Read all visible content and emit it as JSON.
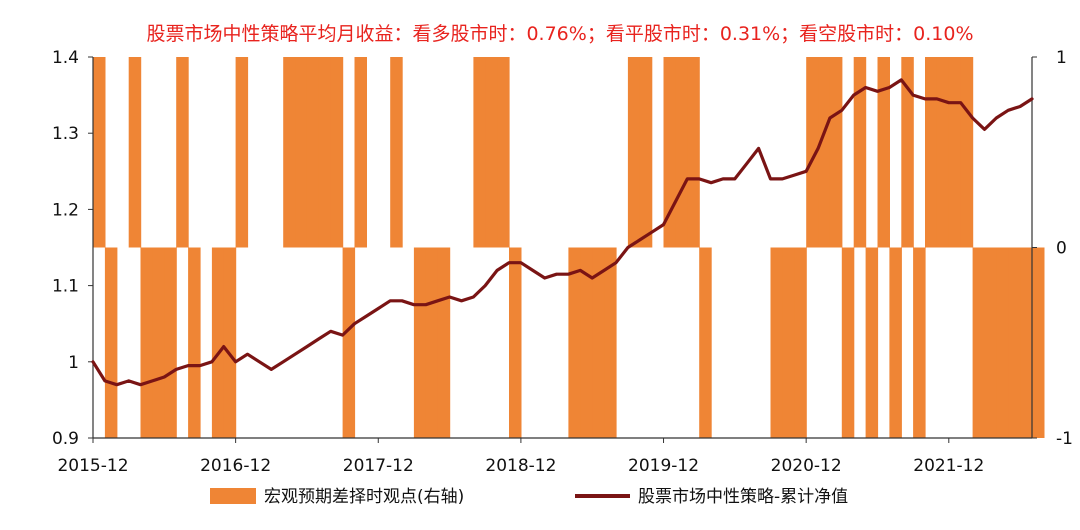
{
  "chart_data": {
    "type": "line",
    "title": "股票市场中性策略平均月收益：看多股市时：0.76%；看平股市时：0.31%；看空股市时：0.10%",
    "x_ticks": [
      "2015-12",
      "2016-12",
      "2017-12",
      "2018-12",
      "2019-12",
      "2020-12",
      "2021-12"
    ],
    "x_range": [
      "2015-12",
      "2022-07"
    ],
    "y_left": {
      "min": 0.9,
      "max": 1.4,
      "ticks": [
        "0.9",
        "1",
        "1.1",
        "1.2",
        "1.3",
        "1.4"
      ]
    },
    "y_right": {
      "min": -1,
      "max": 1,
      "ticks": [
        "-1",
        "0",
        "1"
      ]
    },
    "legend_position": "bottom",
    "colors": {
      "macro_view": "#ef8535",
      "nav": "#7a1414",
      "title": "#e8231e"
    },
    "series": [
      {
        "name": "宏观预期差择时观点(右轴)",
        "kind": "area",
        "axis": "right",
        "x": [
          "2015-12",
          "2016-01",
          "2016-02",
          "2016-03",
          "2016-04",
          "2016-05",
          "2016-06",
          "2016-07",
          "2016-08",
          "2016-09",
          "2016-10",
          "2016-11",
          "2016-12",
          "2017-01",
          "2017-02",
          "2017-03",
          "2017-04",
          "2017-05",
          "2017-06",
          "2017-07",
          "2017-08",
          "2017-09",
          "2017-10",
          "2017-11",
          "2017-12",
          "2018-01",
          "2018-02",
          "2018-03",
          "2018-04",
          "2018-05",
          "2018-06",
          "2018-07",
          "2018-08",
          "2018-09",
          "2018-10",
          "2018-11",
          "2018-12",
          "2019-01",
          "2019-02",
          "2019-03",
          "2019-04",
          "2019-05",
          "2019-06",
          "2019-07",
          "2019-08",
          "2019-09",
          "2019-10",
          "2019-11",
          "2019-12",
          "2020-01",
          "2020-02",
          "2020-03",
          "2020-04",
          "2020-05",
          "2020-06",
          "2020-07",
          "2020-08",
          "2020-09",
          "2020-10",
          "2020-11",
          "2020-12",
          "2021-01",
          "2021-02",
          "2021-03",
          "2021-04",
          "2021-05",
          "2021-06",
          "2021-07",
          "2021-08",
          "2021-09",
          "2021-10",
          "2021-11",
          "2021-12",
          "2022-01",
          "2022-02",
          "2022-03",
          "2022-04",
          "2022-05",
          "2022-06",
          "2022-07"
        ],
        "values": [
          1,
          -1,
          0,
          1,
          -1,
          -1,
          -1,
          1,
          -1,
          0,
          -1,
          -1,
          1,
          0,
          0,
          0,
          1,
          1,
          1,
          1,
          1,
          -1,
          1,
          0,
          0,
          1,
          0,
          -1,
          -1,
          -1,
          0,
          0,
          1,
          1,
          1,
          -1,
          0,
          0,
          0,
          0,
          -1,
          -1,
          -1,
          -1,
          0,
          1,
          1,
          0,
          1,
          1,
          1,
          -1,
          0,
          0,
          0,
          0,
          0,
          -1,
          -1,
          -1,
          1,
          1,
          1,
          -1,
          1,
          -1,
          1,
          -1,
          1,
          -1,
          1,
          1,
          1,
          1,
          -1,
          -1,
          -1,
          -1,
          -1,
          -1
        ]
      },
      {
        "name": "股票市场中性策略-累计净值",
        "kind": "line",
        "axis": "left",
        "x": [
          "2015-12",
          "2016-01",
          "2016-02",
          "2016-03",
          "2016-04",
          "2016-05",
          "2016-06",
          "2016-07",
          "2016-08",
          "2016-09",
          "2016-10",
          "2016-11",
          "2016-12",
          "2017-01",
          "2017-02",
          "2017-03",
          "2017-04",
          "2017-05",
          "2017-06",
          "2017-07",
          "2017-08",
          "2017-09",
          "2017-10",
          "2017-11",
          "2017-12",
          "2018-01",
          "2018-02",
          "2018-03",
          "2018-04",
          "2018-05",
          "2018-06",
          "2018-07",
          "2018-08",
          "2018-09",
          "2018-10",
          "2018-11",
          "2018-12",
          "2019-01",
          "2019-02",
          "2019-03",
          "2019-04",
          "2019-05",
          "2019-06",
          "2019-07",
          "2019-08",
          "2019-09",
          "2019-10",
          "2019-11",
          "2019-12",
          "2020-01",
          "2020-02",
          "2020-03",
          "2020-04",
          "2020-05",
          "2020-06",
          "2020-07",
          "2020-08",
          "2020-09",
          "2020-10",
          "2020-11",
          "2020-12",
          "2021-01",
          "2021-02",
          "2021-03",
          "2021-04",
          "2021-05",
          "2021-06",
          "2021-07",
          "2021-08",
          "2021-09",
          "2021-10",
          "2021-11",
          "2021-12",
          "2022-01",
          "2022-02",
          "2022-03",
          "2022-04",
          "2022-05",
          "2022-06",
          "2022-07"
        ],
        "values": [
          1.0,
          0.975,
          0.97,
          0.975,
          0.97,
          0.975,
          0.98,
          0.99,
          0.995,
          0.995,
          1.0,
          1.02,
          1.0,
          1.01,
          1.0,
          0.99,
          1.0,
          1.01,
          1.02,
          1.03,
          1.04,
          1.035,
          1.05,
          1.06,
          1.07,
          1.08,
          1.08,
          1.075,
          1.075,
          1.08,
          1.085,
          1.08,
          1.085,
          1.1,
          1.12,
          1.13,
          1.13,
          1.12,
          1.11,
          1.115,
          1.115,
          1.12,
          1.11,
          1.12,
          1.13,
          1.15,
          1.16,
          1.17,
          1.18,
          1.21,
          1.24,
          1.24,
          1.235,
          1.24,
          1.24,
          1.26,
          1.28,
          1.24,
          1.24,
          1.245,
          1.25,
          1.28,
          1.32,
          1.33,
          1.35,
          1.36,
          1.355,
          1.36,
          1.37,
          1.35,
          1.345,
          1.345,
          1.34,
          1.34,
          1.32,
          1.305,
          1.32,
          1.33,
          1.335,
          1.345
        ]
      }
    ]
  }
}
